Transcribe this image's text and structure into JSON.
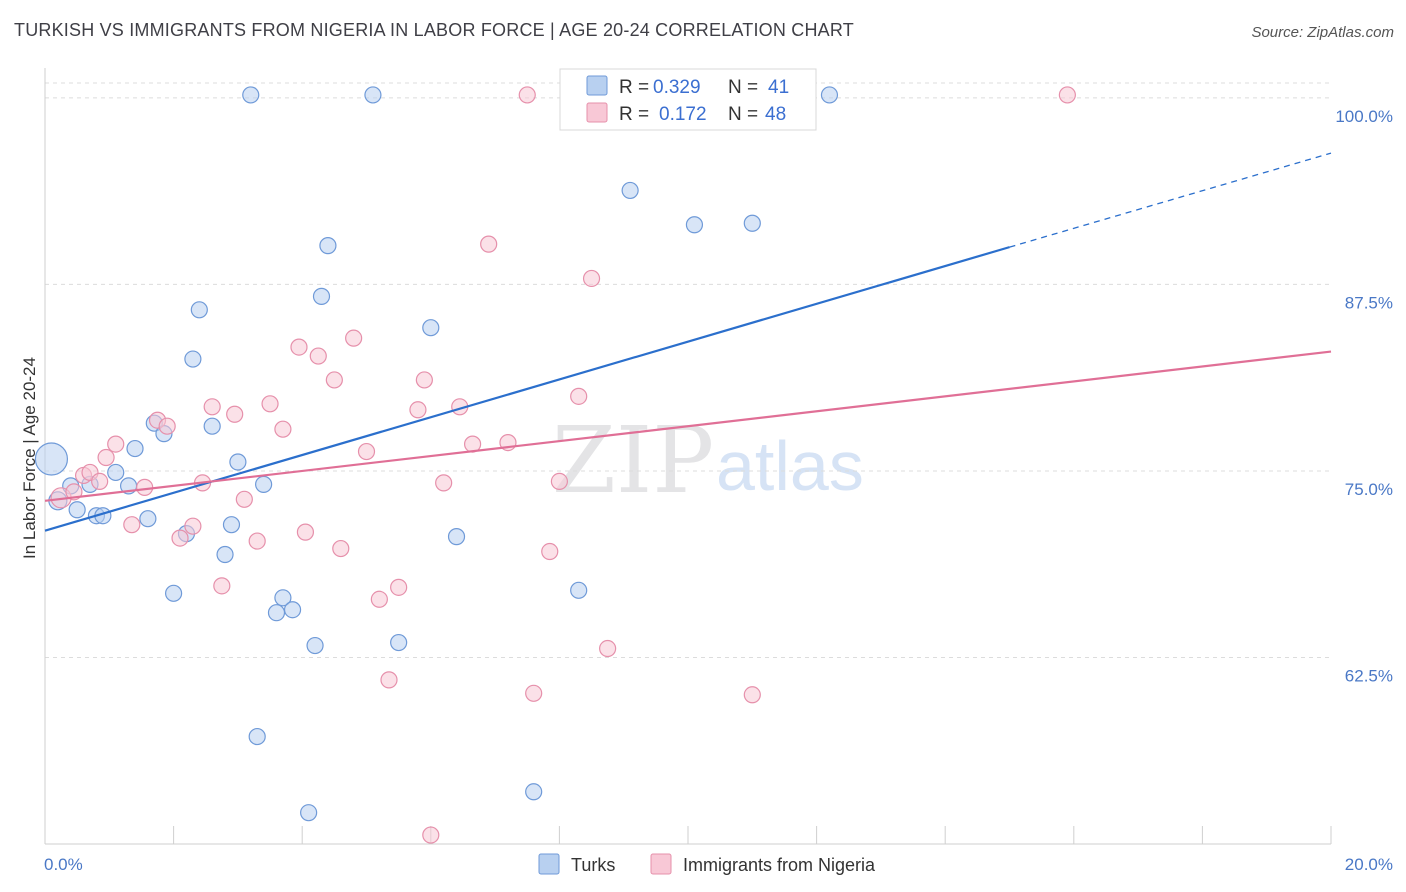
{
  "title": "TURKISH VS IMMIGRANTS FROM NIGERIA IN LABOR FORCE | AGE 20-24 CORRELATION CHART",
  "source": "Source: ZipAtlas.com",
  "watermark": {
    "zip": "ZIP",
    "atlas": "atlas"
  },
  "colors": {
    "turks_fill": "#b8d0f0",
    "turks_stroke": "#6f9ad8",
    "turks_line": "#2b6fcc",
    "nigeria_fill": "#f8c8d6",
    "nigeria_stroke": "#e690ab",
    "nigeria_line": "#e06f96",
    "grid": "#dcdcdc",
    "tick_text": "#4a78c6"
  },
  "legend": {
    "turks": {
      "r_label": "R =",
      "r_value": "0.329",
      "n_label": "N =",
      "n_value": "41"
    },
    "nigeria": {
      "r_label": "R =",
      "r_value": "0.172",
      "n_label": "N =",
      "n_value": "48"
    }
  },
  "chart_data": {
    "type": "scatter",
    "xlabel": "",
    "ylabel": "In Labor Force | Age 20-24",
    "xlim": [
      0,
      20
    ],
    "ylim": [
      50,
      101.2
    ],
    "x_tick_labels": [
      "0.0%",
      "20.0%"
    ],
    "y_ticks": [
      {
        "value": 100,
        "label": "100.0%"
      },
      {
        "value": 87.5,
        "label": "87.5%"
      },
      {
        "value": 75,
        "label": "75.0%"
      },
      {
        "value": 62.5,
        "label": "62.5%"
      }
    ],
    "grid": true,
    "legend_position": "top-center",
    "series": [
      {
        "name": "Turks",
        "key": "turks",
        "trend": {
          "x0": 0,
          "y0": 71.0,
          "x1": 15.0,
          "y1": 90.0,
          "dash_x1": 20,
          "dash_y1": 96.3
        },
        "points": [
          [
            0.1,
            75.8,
            16
          ],
          [
            0.2,
            73.0,
            9
          ],
          [
            0.4,
            74.0,
            8
          ],
          [
            0.5,
            72.4,
            8
          ],
          [
            0.7,
            74.1,
            8
          ],
          [
            0.8,
            72.0,
            8
          ],
          [
            0.9,
            72.0,
            8
          ],
          [
            1.1,
            74.9,
            8
          ],
          [
            1.3,
            74.0,
            8
          ],
          [
            1.4,
            76.5,
            8
          ],
          [
            1.6,
            71.8,
            8
          ],
          [
            1.7,
            78.2,
            8
          ],
          [
            1.85,
            77.5,
            8
          ],
          [
            2.0,
            66.8,
            8
          ],
          [
            2.2,
            70.8,
            8
          ],
          [
            2.3,
            82.5,
            8
          ],
          [
            2.4,
            85.8,
            8
          ],
          [
            2.6,
            78.0,
            8
          ],
          [
            2.8,
            69.4,
            8
          ],
          [
            2.9,
            71.4,
            8
          ],
          [
            3.0,
            75.6,
            8
          ],
          [
            3.2,
            100.2,
            8
          ],
          [
            3.3,
            57.2,
            8
          ],
          [
            3.4,
            74.1,
            8
          ],
          [
            3.6,
            65.5,
            8
          ],
          [
            3.7,
            66.5,
            8
          ],
          [
            3.85,
            65.7,
            8
          ],
          [
            4.1,
            52.1,
            8
          ],
          [
            4.2,
            63.3,
            8
          ],
          [
            4.3,
            86.7,
            8
          ],
          [
            4.4,
            90.1,
            8
          ],
          [
            5.1,
            100.2,
            8
          ],
          [
            5.5,
            63.5,
            8
          ],
          [
            6.0,
            84.6,
            8
          ],
          [
            6.4,
            70.6,
            8
          ],
          [
            7.6,
            53.5,
            8
          ],
          [
            8.3,
            67.0,
            8
          ],
          [
            9.1,
            93.8,
            8
          ],
          [
            10.1,
            91.5,
            8
          ],
          [
            11.0,
            91.6,
            8
          ],
          [
            12.2,
            100.2,
            8
          ]
        ]
      },
      {
        "name": "Immigrants from Nigeria",
        "key": "nigeria",
        "trend": {
          "x0": 0,
          "y0": 73.0,
          "x1": 20,
          "y1": 83.0
        },
        "points": [
          [
            0.25,
            73.2,
            10
          ],
          [
            0.45,
            73.6,
            8
          ],
          [
            0.6,
            74.7,
            8
          ],
          [
            0.7,
            74.9,
            8
          ],
          [
            0.85,
            74.3,
            8
          ],
          [
            0.95,
            75.9,
            8
          ],
          [
            1.1,
            76.8,
            8
          ],
          [
            1.35,
            71.4,
            8
          ],
          [
            1.55,
            73.9,
            8
          ],
          [
            1.75,
            78.4,
            8
          ],
          [
            1.9,
            78.0,
            8
          ],
          [
            2.1,
            70.5,
            8
          ],
          [
            2.3,
            71.3,
            8
          ],
          [
            2.45,
            74.2,
            8
          ],
          [
            2.6,
            79.3,
            8
          ],
          [
            2.75,
            67.3,
            8
          ],
          [
            2.95,
            78.8,
            8
          ],
          [
            3.1,
            73.1,
            8
          ],
          [
            3.3,
            70.3,
            8
          ],
          [
            3.5,
            79.5,
            8
          ],
          [
            3.7,
            77.8,
            8
          ],
          [
            3.95,
            83.3,
            8
          ],
          [
            4.05,
            70.9,
            8
          ],
          [
            4.25,
            82.7,
            8
          ],
          [
            4.5,
            81.1,
            8
          ],
          [
            4.6,
            69.8,
            8
          ],
          [
            4.8,
            83.9,
            8
          ],
          [
            5.0,
            76.3,
            8
          ],
          [
            5.2,
            66.4,
            8
          ],
          [
            5.35,
            61.0,
            8
          ],
          [
            5.5,
            67.2,
            8
          ],
          [
            5.8,
            79.1,
            8
          ],
          [
            5.9,
            81.1,
            8
          ],
          [
            6.0,
            50.6,
            8
          ],
          [
            6.2,
            74.2,
            8
          ],
          [
            6.45,
            79.3,
            8
          ],
          [
            6.65,
            76.8,
            8
          ],
          [
            6.9,
            90.2,
            8
          ],
          [
            7.2,
            76.9,
            8
          ],
          [
            7.5,
            100.2,
            8
          ],
          [
            7.6,
            60.1,
            8
          ],
          [
            7.85,
            69.6,
            8
          ],
          [
            8.0,
            74.3,
            8
          ],
          [
            8.3,
            80.0,
            8
          ],
          [
            8.5,
            87.9,
            8
          ],
          [
            8.75,
            63.1,
            8
          ],
          [
            11.0,
            60.0,
            8
          ],
          [
            15.9,
            100.2,
            8
          ]
        ]
      }
    ]
  }
}
